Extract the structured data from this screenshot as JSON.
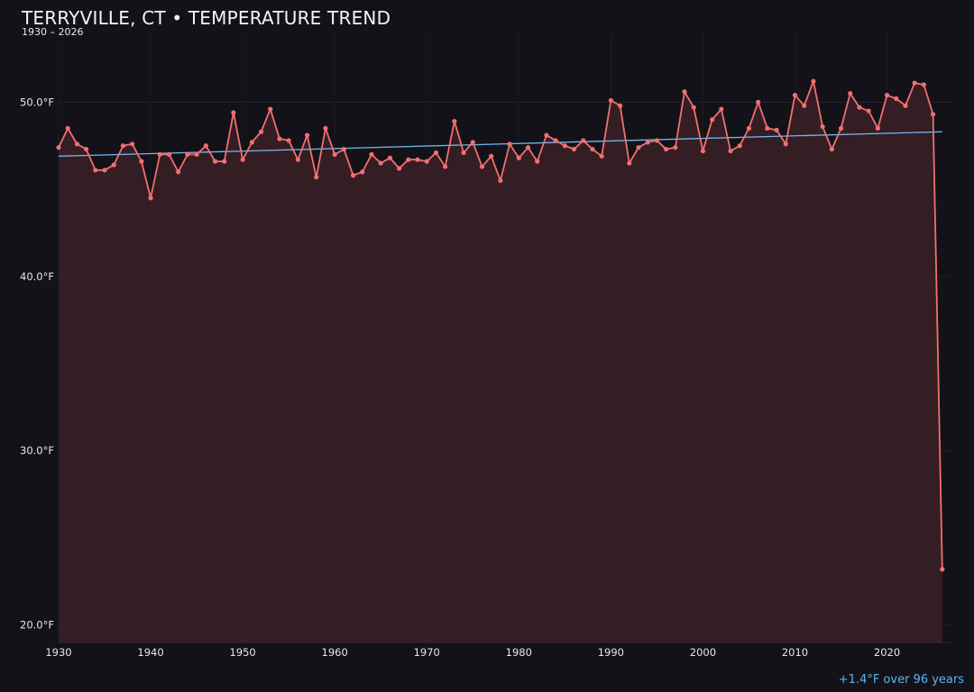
{
  "chart_data": {
    "type": "line",
    "title": "TERRYVILLE, CT • TEMPERATURE TREND",
    "subtitle": "1930 – 2026",
    "annotation": "+1.4°F over 96 years",
    "xlim": [
      1930,
      2027
    ],
    "ylim": [
      19,
      54
    ],
    "x_ticks": [
      1930,
      1940,
      1950,
      1960,
      1970,
      1980,
      1990,
      2000,
      2010,
      2020
    ],
    "y_ticks": [
      20,
      30,
      40,
      50
    ],
    "y_tick_labels": [
      "20.0°F",
      "30.0°F",
      "40.0°F",
      "50.0°F"
    ],
    "grid": true,
    "colors": {
      "background": "#131218",
      "series": "#f07070",
      "area": "#3a1f26",
      "trend": "#6cb8f0",
      "grid": "#24222a"
    },
    "series": [
      {
        "values": [
          [
            1930,
            47.4
          ],
          [
            1931,
            48.5
          ],
          [
            1932,
            47.6
          ],
          [
            1933,
            47.3
          ],
          [
            1934,
            46.1
          ],
          [
            1935,
            46.1
          ],
          [
            1936,
            46.4
          ],
          [
            1937,
            47.5
          ],
          [
            1938,
            47.6
          ],
          [
            1939,
            46.6
          ],
          [
            1940,
            44.5
          ],
          [
            1941,
            47.0
          ],
          [
            1942,
            47.0
          ],
          [
            1943,
            46.0
          ],
          [
            1944,
            47.0
          ],
          [
            1945,
            47.0
          ],
          [
            1946,
            47.5
          ],
          [
            1947,
            46.6
          ],
          [
            1948,
            46.6
          ],
          [
            1949,
            49.4
          ],
          [
            1950,
            46.7
          ],
          [
            1951,
            47.7
          ],
          [
            1952,
            48.3
          ],
          [
            1953,
            49.6
          ],
          [
            1954,
            47.9
          ],
          [
            1955,
            47.8
          ],
          [
            1956,
            46.7
          ],
          [
            1957,
            48.1
          ],
          [
            1958,
            45.7
          ],
          [
            1959,
            48.5
          ],
          [
            1960,
            47.0
          ],
          [
            1961,
            47.3
          ],
          [
            1962,
            45.8
          ],
          [
            1963,
            46.0
          ],
          [
            1964,
            47.0
          ],
          [
            1965,
            46.5
          ],
          [
            1966,
            46.8
          ],
          [
            1967,
            46.2
          ],
          [
            1968,
            46.7
          ],
          [
            1969,
            46.7
          ],
          [
            1970,
            46.6
          ],
          [
            1971,
            47.1
          ],
          [
            1972,
            46.3
          ],
          [
            1973,
            48.9
          ],
          [
            1974,
            47.1
          ],
          [
            1975,
            47.7
          ],
          [
            1976,
            46.3
          ],
          [
            1977,
            46.9
          ],
          [
            1978,
            45.5
          ],
          [
            1979,
            47.6
          ],
          [
            1980,
            46.8
          ],
          [
            1981,
            47.4
          ],
          [
            1982,
            46.6
          ],
          [
            1983,
            48.1
          ],
          [
            1984,
            47.8
          ],
          [
            1985,
            47.5
          ],
          [
            1986,
            47.3
          ],
          [
            1987,
            47.8
          ],
          [
            1988,
            47.3
          ],
          [
            1989,
            46.9
          ],
          [
            1990,
            50.1
          ],
          [
            1991,
            49.8
          ],
          [
            1992,
            46.5
          ],
          [
            1993,
            47.4
          ],
          [
            1994,
            47.7
          ],
          [
            1995,
            47.8
          ],
          [
            1996,
            47.3
          ],
          [
            1997,
            47.4
          ],
          [
            1998,
            50.6
          ],
          [
            1999,
            49.7
          ],
          [
            2000,
            47.2
          ],
          [
            2001,
            49.0
          ],
          [
            2002,
            49.6
          ],
          [
            2003,
            47.2
          ],
          [
            2004,
            47.5
          ],
          [
            2005,
            48.5
          ],
          [
            2006,
            50.0
          ],
          [
            2007,
            48.5
          ],
          [
            2008,
            48.4
          ],
          [
            2009,
            47.6
          ],
          [
            2010,
            50.4
          ],
          [
            2011,
            49.8
          ],
          [
            2012,
            51.2
          ],
          [
            2013,
            48.6
          ],
          [
            2014,
            47.3
          ],
          [
            2015,
            48.5
          ],
          [
            2016,
            50.5
          ],
          [
            2017,
            49.7
          ],
          [
            2018,
            49.5
          ],
          [
            2019,
            48.5
          ],
          [
            2020,
            50.4
          ],
          [
            2021,
            50.2
          ],
          [
            2022,
            49.8
          ],
          [
            2023,
            51.1
          ],
          [
            2024,
            51.0
          ],
          [
            2025,
            49.3
          ],
          [
            2026,
            23.2
          ]
        ]
      }
    ],
    "trend_line": [
      [
        1930,
        46.9
      ],
      [
        2026,
        48.3
      ]
    ]
  }
}
